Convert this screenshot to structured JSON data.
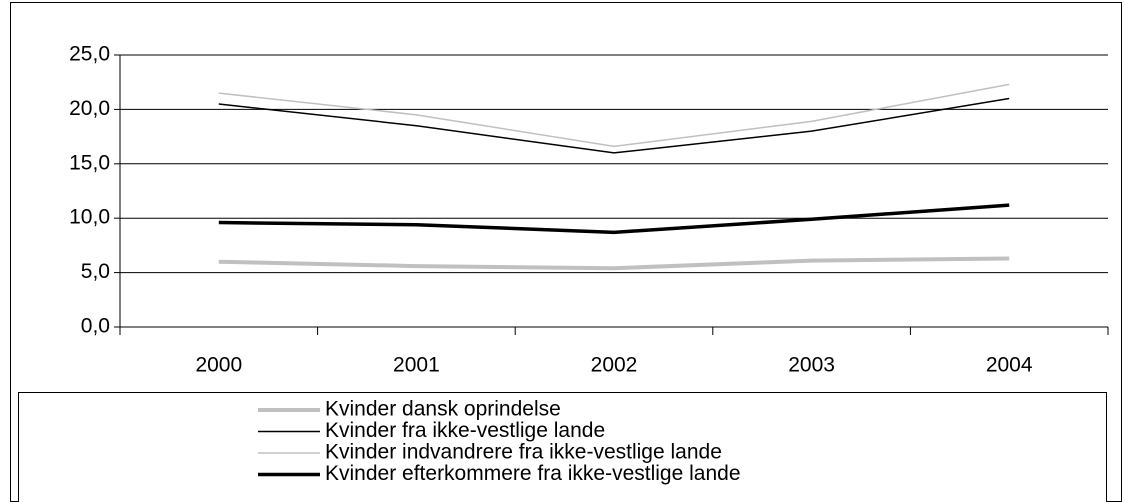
{
  "chart_data": {
    "type": "line",
    "categories": [
      "2000",
      "2001",
      "2002",
      "2003",
      "2004"
    ],
    "series": [
      {
        "name": "Kvinder dansk oprindelse",
        "color": "#c0c0c0",
        "width": 4,
        "values": [
          6.0,
          5.6,
          5.4,
          6.1,
          6.3
        ]
      },
      {
        "name": "Kvinder fra ikke-vestlige lande",
        "color": "#000000",
        "width": 1.5,
        "values": [
          20.5,
          18.5,
          16.0,
          18.0,
          21.0
        ]
      },
      {
        "name": "Kvinder indvandrere fra ikke-vestlige lande",
        "color": "#c0c0c0",
        "width": 1.5,
        "values": [
          21.5,
          19.5,
          16.6,
          18.9,
          22.3
        ]
      },
      {
        "name": "Kvinder efterkommere fra ikke-vestlige lande",
        "color": "#000000",
        "width": 3.5,
        "values": [
          9.6,
          9.4,
          8.7,
          9.9,
          11.2
        ]
      }
    ],
    "ylim": [
      0,
      25
    ],
    "yticks": [
      {
        "value": 0,
        "label": "0,0"
      },
      {
        "value": 5,
        "label": "5,0"
      },
      {
        "value": 10,
        "label": "10,0"
      },
      {
        "value": 15,
        "label": "15,0"
      },
      {
        "value": 20,
        "label": "20,0"
      },
      {
        "value": 25,
        "label": "25,0"
      }
    ],
    "grid": true
  }
}
